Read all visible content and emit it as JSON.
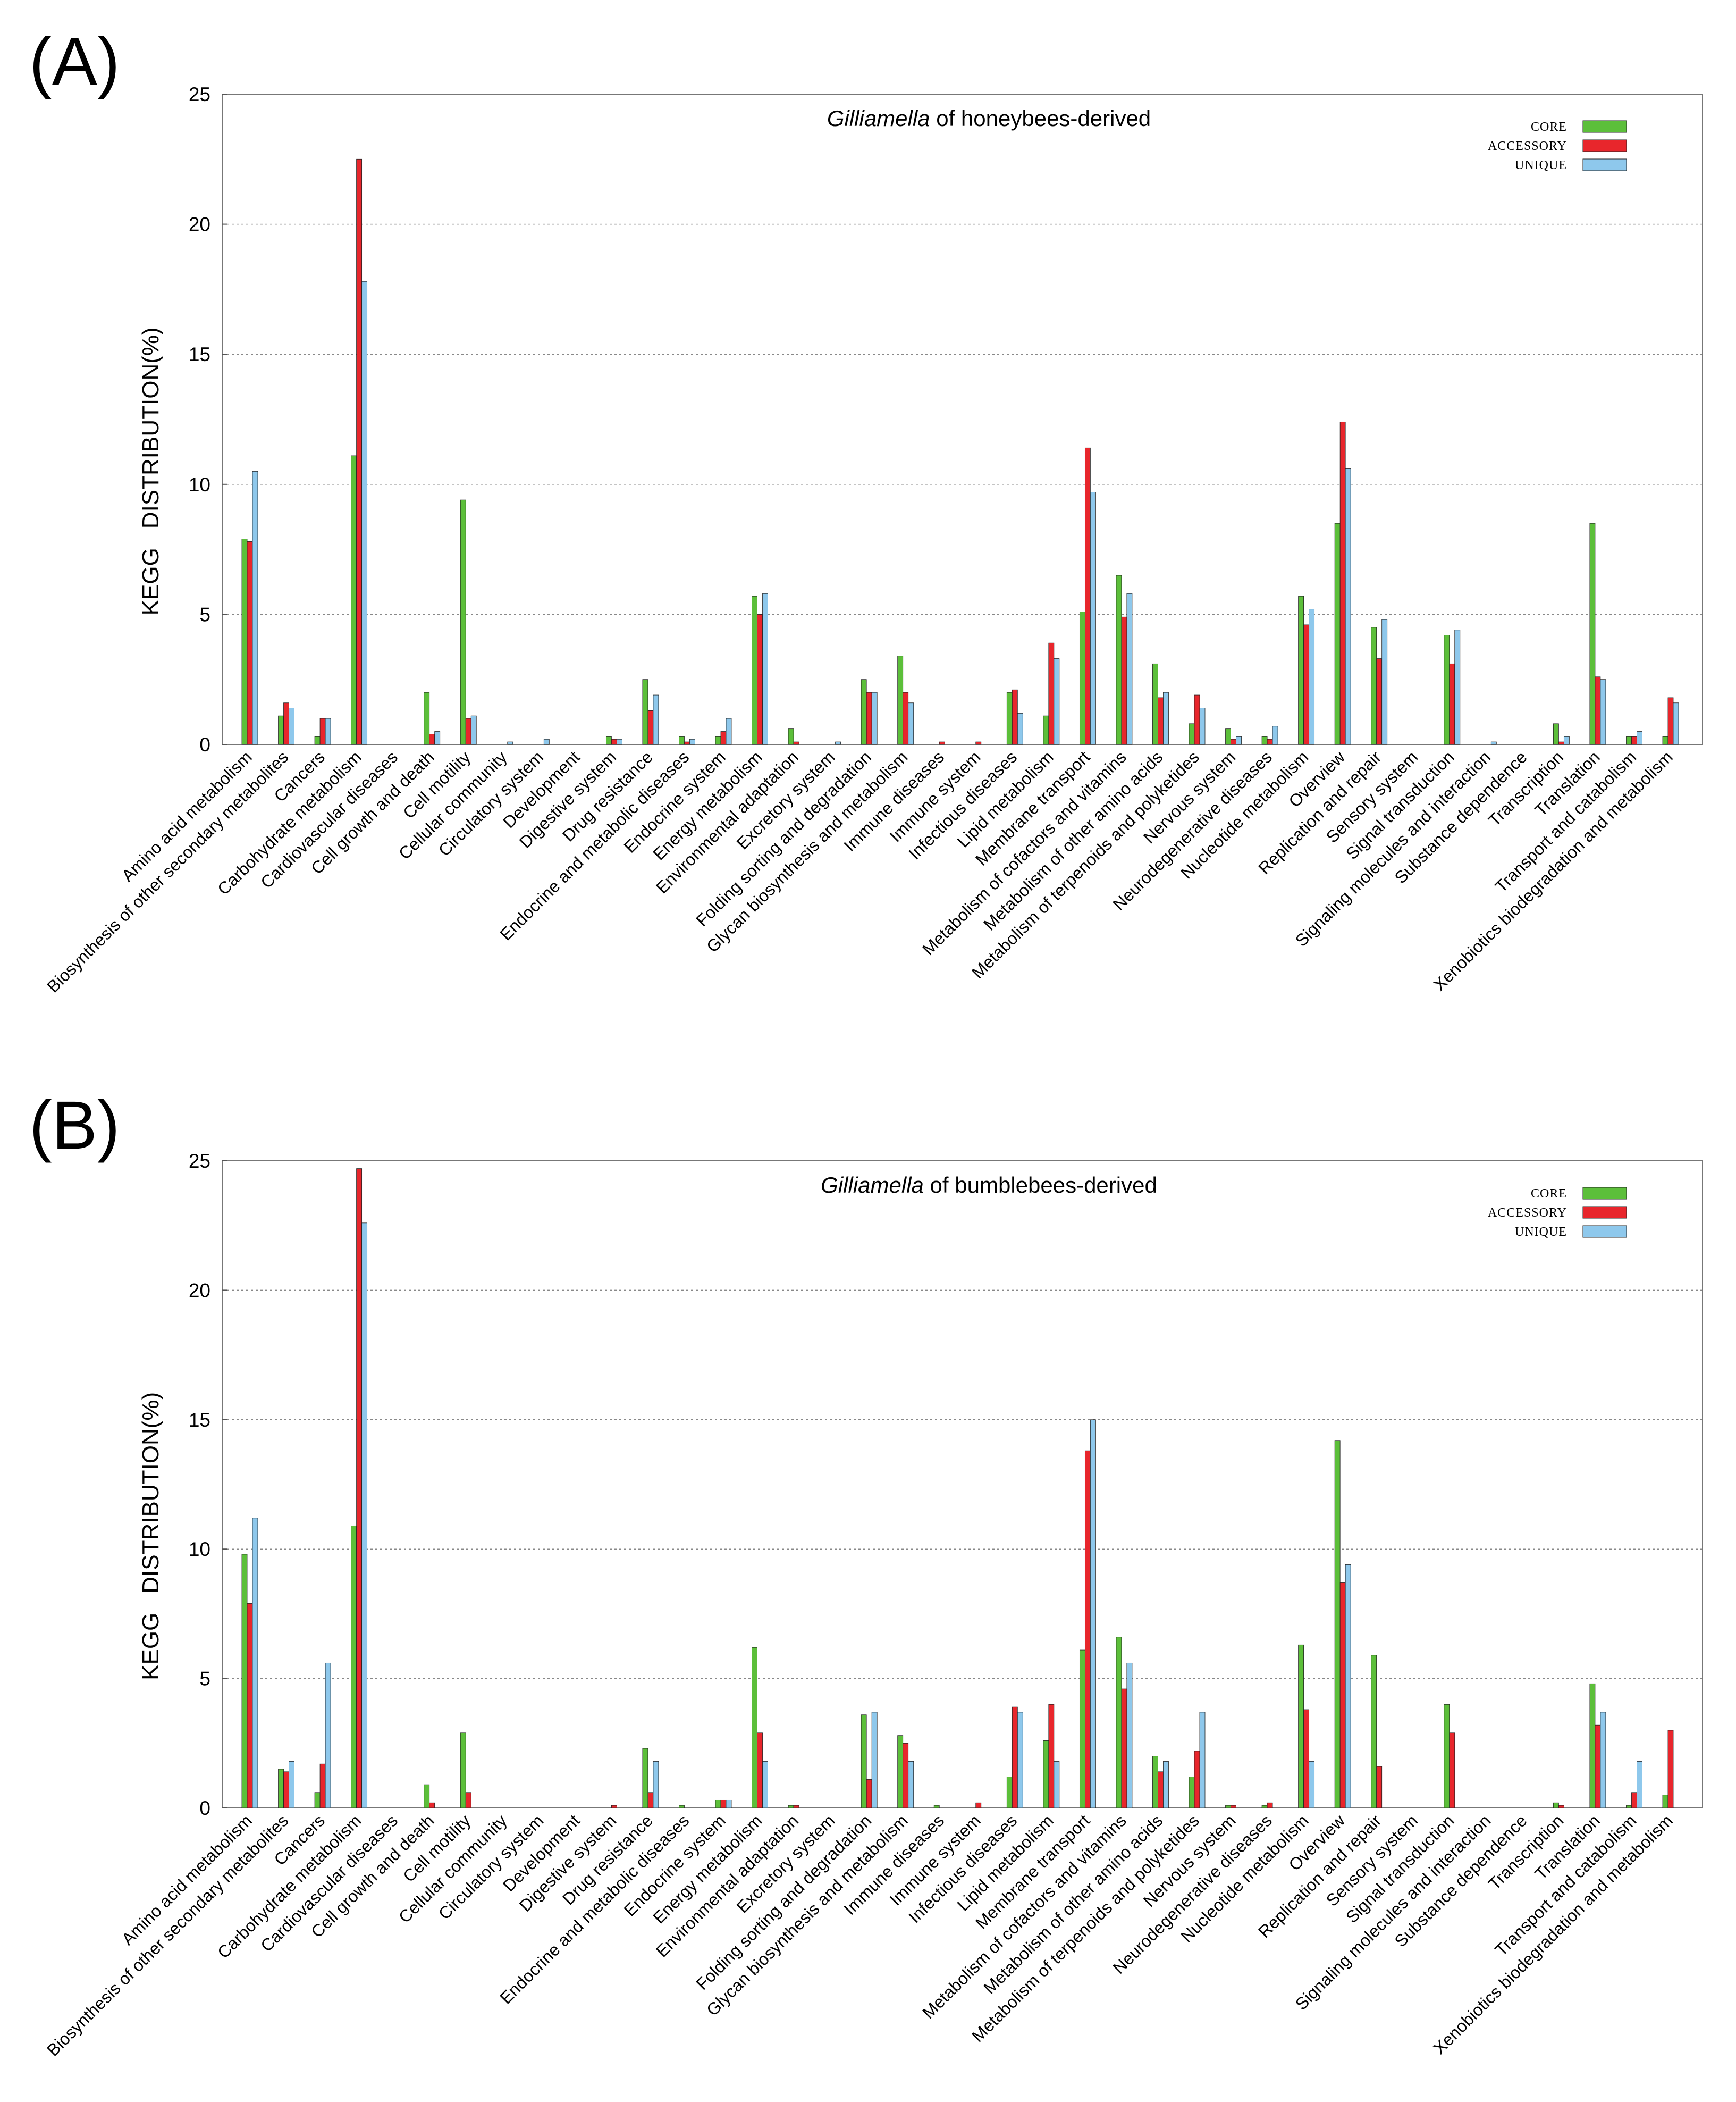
{
  "figure": {
    "panel_labels": [
      "(A)",
      "(B)"
    ]
  },
  "chart_data": [
    {
      "type": "bar",
      "panel": "(A)",
      "title_italic": "Gilliamella",
      "title_rest": " of honeybees-derived",
      "ylabel_part1": "KEGG",
      "ylabel_part2": "DISTRIBUTION(%)",
      "ylim": [
        0,
        25
      ],
      "yticks": [
        0,
        5,
        10,
        15,
        20,
        25
      ],
      "grid": true,
      "legend_position": "top-right",
      "categories": [
        "Amino acid metabolism",
        "Biosynthesis of other secondary metabolites",
        "Cancers",
        "Carbohydrate metabolism",
        "Cardiovascular diseases",
        "Cell growth and death",
        "Cell motility",
        "Cellular community",
        "Circulatory system",
        "Development",
        "Digestive system",
        "Drug resistance",
        "Endocrine and metabolic diseases",
        "Endocrine system",
        "Energy metabolism",
        "Environmental adaptation",
        "Excretory system",
        "Folding sorting and degradation",
        "Glycan biosynthesis and metabolism",
        "Immune diseases",
        "Immune system",
        "Infectious diseases",
        "Lipid metabolism",
        "Membrane transport",
        "Metabolism of cofactors and vitamins",
        "Metabolism of other amino acids",
        "Metabolism of terpenoids and polyketides",
        "Nervous system",
        "Neurodegenerative diseases",
        "Nucleotide metabolism",
        "Overview",
        "Replication and repair",
        "Sensory system",
        "Signal transduction",
        "Signaling molecules and interaction",
        "Substance dependence",
        "Transcription",
        "Translation",
        "Transport and catabolism",
        "Xenobiotics biodegradation and metabolism"
      ],
      "series": [
        {
          "name": "CORE",
          "color": "#5cbf3a",
          "values": [
            7.9,
            1.1,
            0.3,
            11.1,
            0.0,
            2.0,
            9.4,
            0.0,
            0.0,
            0.0,
            0.3,
            2.5,
            0.3,
            0.3,
            5.7,
            0.6,
            0.0,
            2.5,
            3.4,
            0.0,
            0.0,
            2.0,
            1.1,
            5.1,
            6.5,
            3.1,
            0.8,
            0.6,
            0.3,
            5.7,
            8.5,
            4.5,
            0.0,
            4.2,
            0.0,
            0.0,
            0.8,
            8.5,
            0.3,
            0.3
          ]
        },
        {
          "name": "ACCESSORY",
          "color": "#e8262c",
          "values": [
            7.8,
            1.6,
            1.0,
            22.5,
            0.0,
            0.4,
            1.0,
            0.0,
            0.0,
            0.0,
            0.2,
            1.3,
            0.1,
            0.5,
            5.0,
            0.1,
            0.0,
            2.0,
            2.0,
            0.1,
            0.1,
            2.1,
            3.9,
            11.4,
            4.9,
            1.8,
            1.9,
            0.2,
            0.2,
            4.6,
            12.4,
            3.3,
            0.0,
            3.1,
            0.0,
            0.0,
            0.1,
            2.6,
            0.3,
            1.8
          ]
        },
        {
          "name": "UNIQUE",
          "color": "#8ec8ec",
          "values": [
            10.5,
            1.4,
            1.0,
            17.8,
            0.0,
            0.5,
            1.1,
            0.1,
            0.2,
            0.0,
            0.2,
            1.9,
            0.2,
            1.0,
            5.8,
            0.0,
            0.1,
            2.0,
            1.6,
            0.0,
            0.0,
            1.2,
            3.3,
            9.7,
            5.8,
            2.0,
            1.4,
            0.3,
            0.7,
            5.2,
            10.6,
            4.8,
            0.0,
            4.4,
            0.1,
            0.0,
            0.3,
            2.5,
            0.5,
            1.6
          ]
        }
      ]
    },
    {
      "type": "bar",
      "panel": "(B)",
      "title_italic": "Gilliamella",
      "title_rest": " of bumblebees-derived",
      "ylabel_part1": "KEGG",
      "ylabel_part2": "DISTRIBUTION(%)",
      "ylim": [
        0,
        25
      ],
      "yticks": [
        0,
        5,
        10,
        15,
        20,
        25
      ],
      "grid": true,
      "legend_position": "top-right",
      "categories": [
        "Amino acid metabolism",
        "Biosynthesis of other secondary metabolites",
        "Cancers",
        "Carbohydrate metabolism",
        "Cardiovascular diseases",
        "Cell growth and death",
        "Cell motility",
        "Cellular community",
        "Circulatory system",
        "Development",
        "Digestive system",
        "Drug resistance",
        "Endocrine and metabolic diseases",
        "Endocrine system",
        "Energy metabolism",
        "Environmental adaptation",
        "Excretory system",
        "Folding sorting and degradation",
        "Glycan biosynthesis and metabolism",
        "Immune diseases",
        "Immune system",
        "Infectious diseases",
        "Lipid metabolism",
        "Membrane transport",
        "Metabolism of cofactors and vitamins",
        "Metabolism of other amino acids",
        "Metabolism of terpenoids and polyketides",
        "Nervous system",
        "Neurodegenerative diseases",
        "Nucleotide metabolism",
        "Overview",
        "Replication and repair",
        "Sensory system",
        "Signal transduction",
        "Signaling molecules and interaction",
        "Substance dependence",
        "Transcription",
        "Translation",
        "Transport and catabolism",
        "Xenobiotics biodegradation and metabolism"
      ],
      "series": [
        {
          "name": "CORE",
          "color": "#5cbf3a",
          "values": [
            9.8,
            1.5,
            0.6,
            10.9,
            0.0,
            0.9,
            2.9,
            0.0,
            0.0,
            0.0,
            0.0,
            2.3,
            0.1,
            0.3,
            6.2,
            0.1,
            0.0,
            3.6,
            2.8,
            0.1,
            0.0,
            1.2,
            2.6,
            6.1,
            6.6,
            2.0,
            1.2,
            0.1,
            0.1,
            6.3,
            14.2,
            5.9,
            0.0,
            4.0,
            0.0,
            0.0,
            0.2,
            4.8,
            0.1,
            0.5
          ]
        },
        {
          "name": "ACCESSORY",
          "color": "#e8262c",
          "values": [
            7.9,
            1.4,
            1.7,
            24.7,
            0.0,
            0.2,
            0.6,
            0.0,
            0.0,
            0.0,
            0.1,
            0.6,
            0.0,
            0.3,
            2.9,
            0.1,
            0.0,
            1.1,
            2.5,
            0.0,
            0.2,
            3.9,
            4.0,
            13.8,
            4.6,
            1.4,
            2.2,
            0.1,
            0.2,
            3.8,
            8.7,
            1.6,
            0.0,
            2.9,
            0.0,
            0.0,
            0.1,
            3.2,
            0.6,
            3.0
          ]
        },
        {
          "name": "UNIQUE",
          "color": "#8ec8ec",
          "values": [
            11.2,
            1.8,
            5.6,
            22.6,
            0.0,
            0.0,
            0.0,
            0.0,
            0.0,
            0.0,
            0.0,
            1.8,
            0.0,
            0.3,
            1.8,
            0.0,
            0.0,
            3.7,
            1.8,
            0.0,
            0.0,
            3.7,
            1.8,
            15.0,
            5.6,
            1.8,
            3.7,
            0.0,
            0.0,
            1.8,
            9.4,
            0.0,
            0.0,
            0.0,
            0.0,
            0.0,
            0.0,
            3.7,
            1.8,
            0.0
          ]
        }
      ]
    }
  ]
}
